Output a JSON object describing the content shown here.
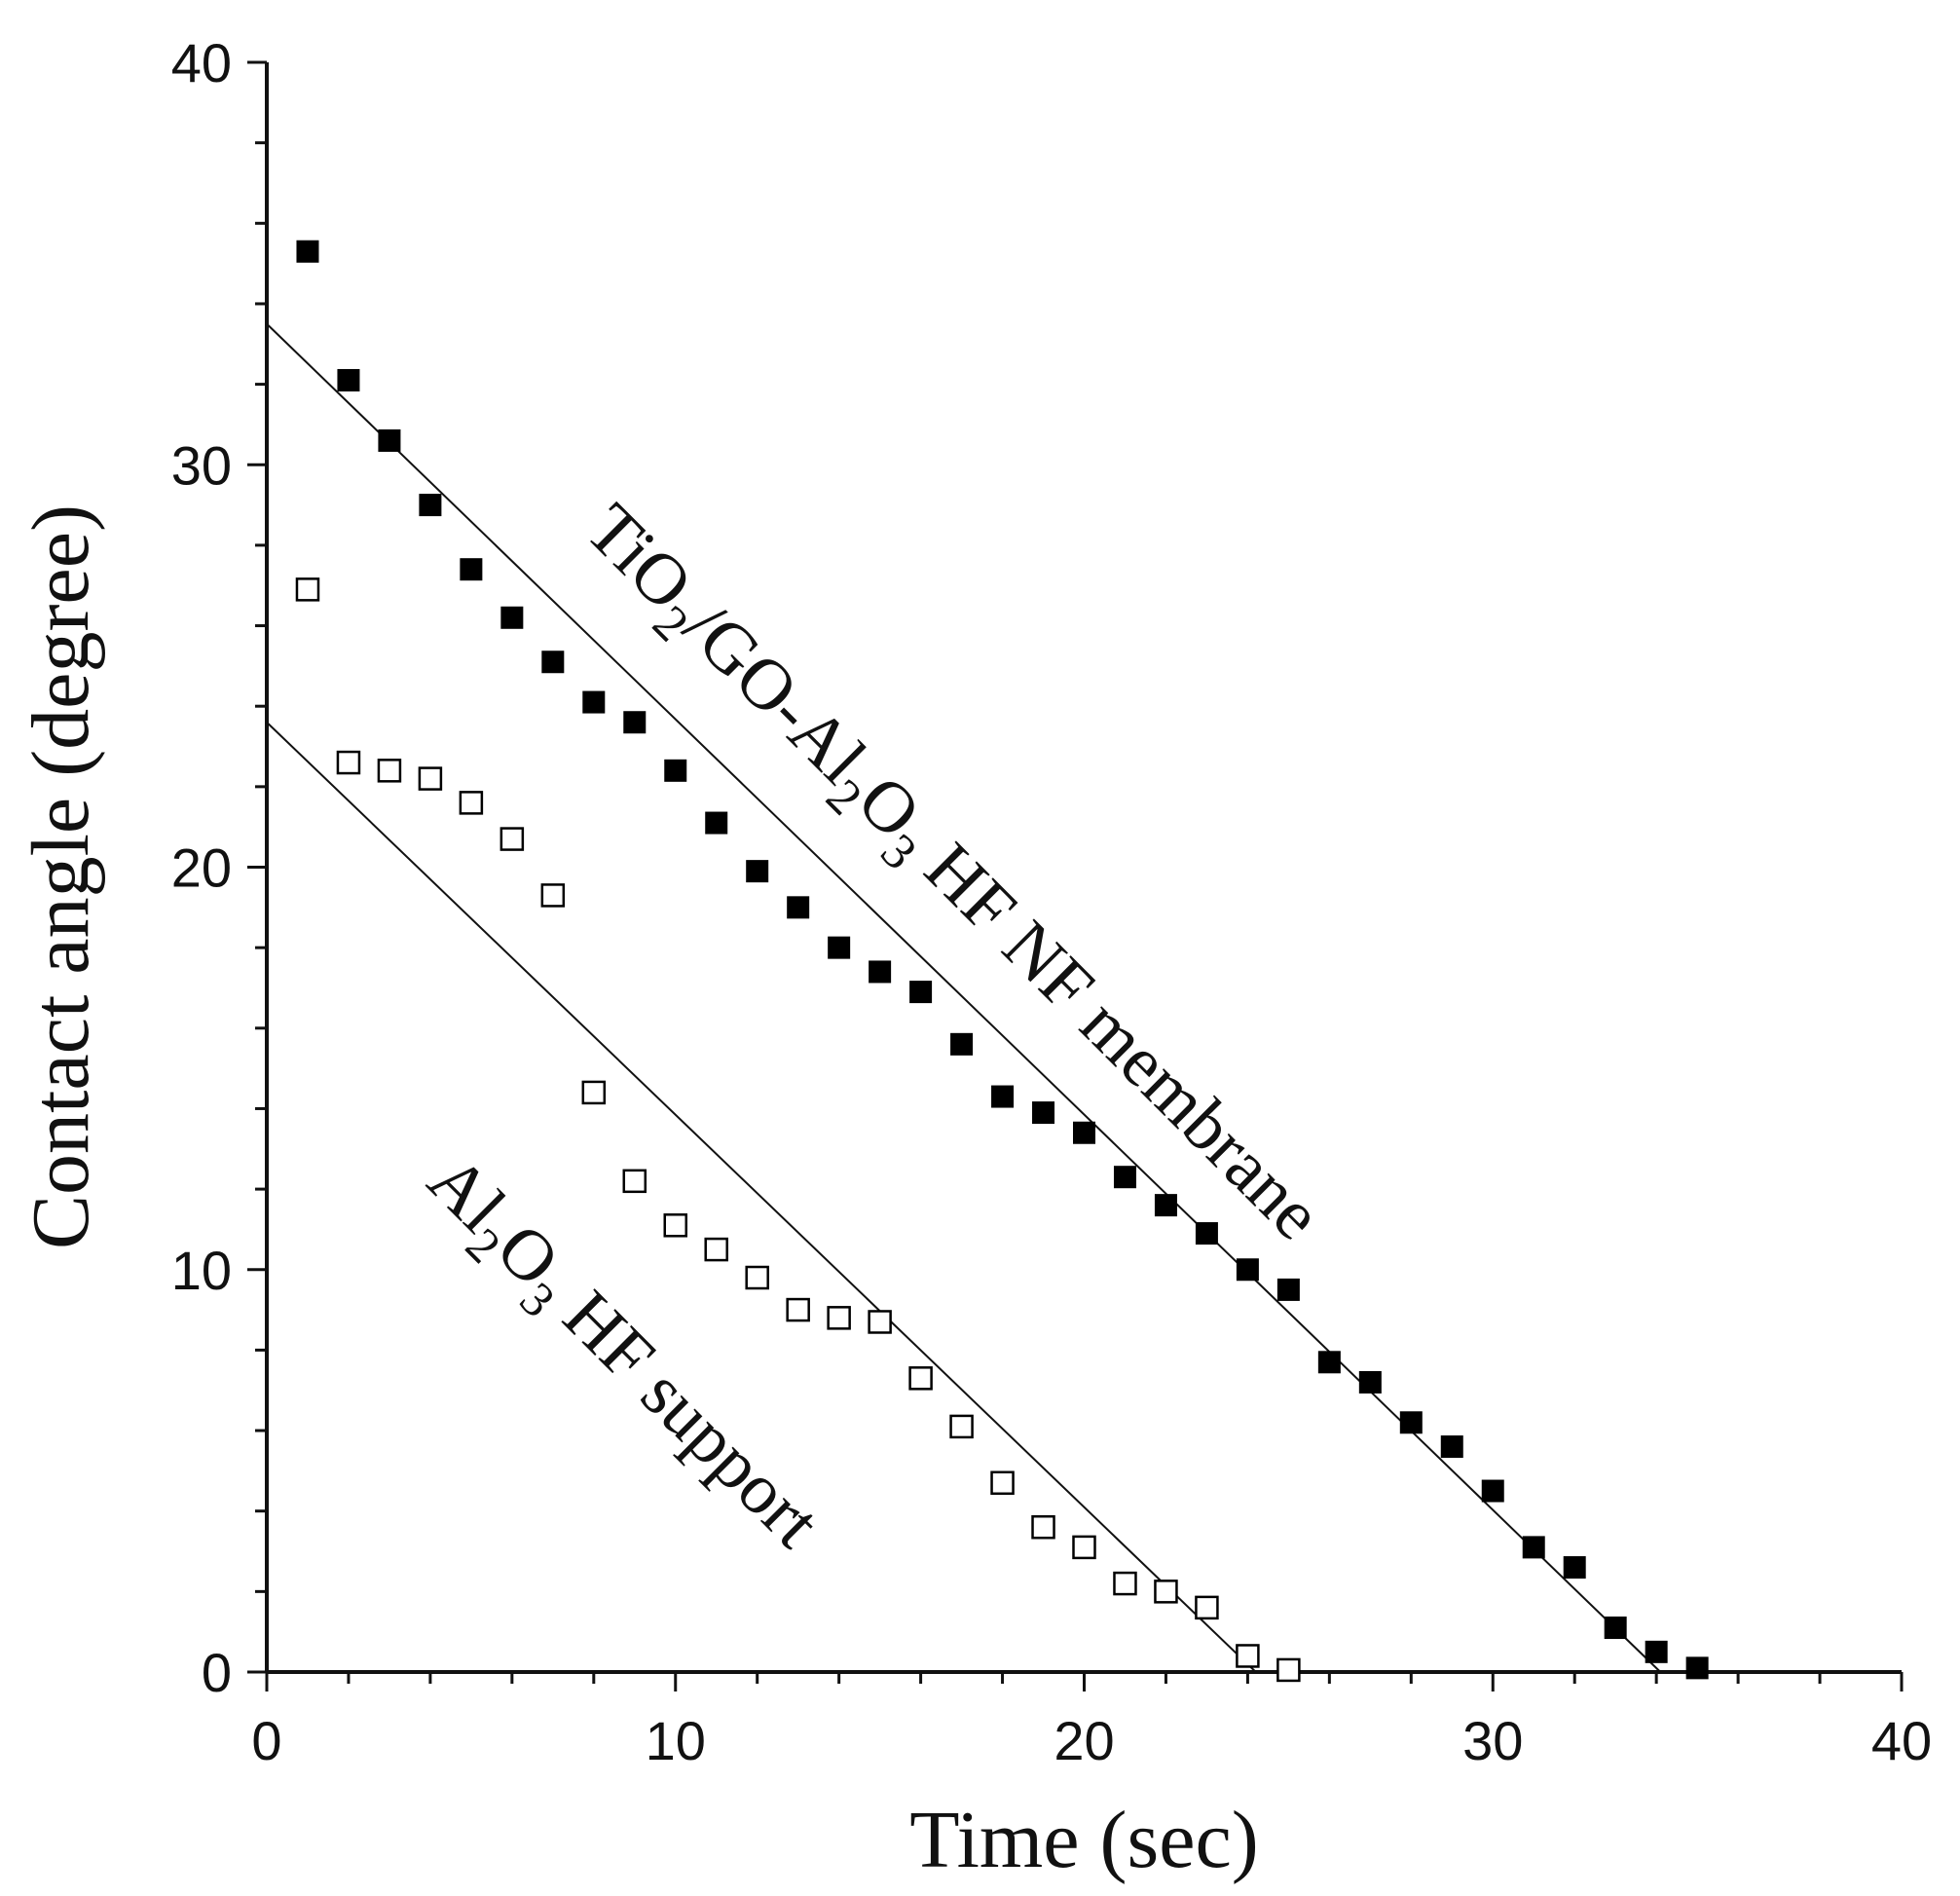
{
  "chart_data": {
    "type": "scatter",
    "title": "",
    "xlabel": "Time (sec)",
    "ylabel": "Contact angle  (degree)",
    "xlim": [
      0,
      40
    ],
    "ylim": [
      0,
      40
    ],
    "x_ticks": [
      "0",
      "10",
      "20",
      "30",
      "40"
    ],
    "y_ticks": [
      "0",
      "10",
      "20",
      "30",
      "40"
    ],
    "x_minor_step": 2,
    "y_minor_step": 2,
    "grid": false,
    "legend": "none",
    "series": [
      {
        "name": "TiO2/GO-Al2O3 HF NF membrane",
        "marker": "filled-square",
        "color": "#000000",
        "x": [
          1,
          2,
          3,
          4,
          5,
          6,
          7,
          8,
          9,
          10,
          11,
          12,
          13,
          14,
          15,
          16,
          17,
          18,
          19,
          20,
          21,
          22,
          23,
          24,
          25,
          26,
          27,
          28,
          29,
          30,
          31,
          32,
          33,
          34,
          35
        ],
        "y": [
          35.3,
          32.1,
          30.6,
          29.0,
          27.4,
          26.2,
          25.1,
          24.1,
          23.6,
          22.4,
          21.1,
          19.9,
          19.0,
          18.0,
          17.4,
          16.9,
          15.6,
          14.3,
          13.9,
          13.4,
          12.3,
          11.6,
          10.9,
          10.0,
          9.5,
          7.7,
          7.2,
          6.2,
          5.6,
          4.5,
          3.1,
          2.6,
          1.1,
          0.5,
          0.1
        ],
        "fit_line": {
          "x": [
            0,
            34.1
          ],
          "y": [
            33.5,
            0
          ]
        }
      },
      {
        "name": "Al2O3 HF support",
        "marker": "open-square",
        "color": "#000000",
        "x": [
          1,
          2,
          3,
          4,
          5,
          6,
          7,
          8,
          9,
          10,
          11,
          12,
          13,
          14,
          15,
          16,
          17,
          18,
          19,
          20,
          21,
          22,
          23,
          24,
          25
        ],
        "y": [
          26.9,
          22.6,
          22.4,
          22.2,
          21.6,
          20.7,
          19.3,
          14.4,
          12.2,
          11.1,
          10.5,
          9.8,
          9.0,
          8.8,
          8.7,
          7.3,
          6.1,
          4.7,
          3.6,
          3.1,
          2.2,
          2.0,
          1.6,
          0.4,
          0.05
        ],
        "fit_line": {
          "x": [
            0,
            24.2
          ],
          "y": [
            23.6,
            0
          ]
        }
      }
    ],
    "annotations": [
      {
        "series": 0,
        "parts": [
          {
            "text": "TiO",
            "sub": false
          },
          {
            "text": "2",
            "sub": true
          },
          {
            "text": "/GO-Al",
            "sub": false
          },
          {
            "text": "2",
            "sub": true
          },
          {
            "text": "O",
            "sub": false
          },
          {
            "text": "3",
            "sub": true
          },
          {
            "text": " HF NF membrane",
            "sub": false
          }
        ],
        "angle": 45
      },
      {
        "series": 1,
        "parts": [
          {
            "text": "Al",
            "sub": false
          },
          {
            "text": "2",
            "sub": true
          },
          {
            "text": "O",
            "sub": false
          },
          {
            "text": "3",
            "sub": true
          },
          {
            "text": " HF support",
            "sub": false
          }
        ],
        "angle": 45
      }
    ]
  }
}
